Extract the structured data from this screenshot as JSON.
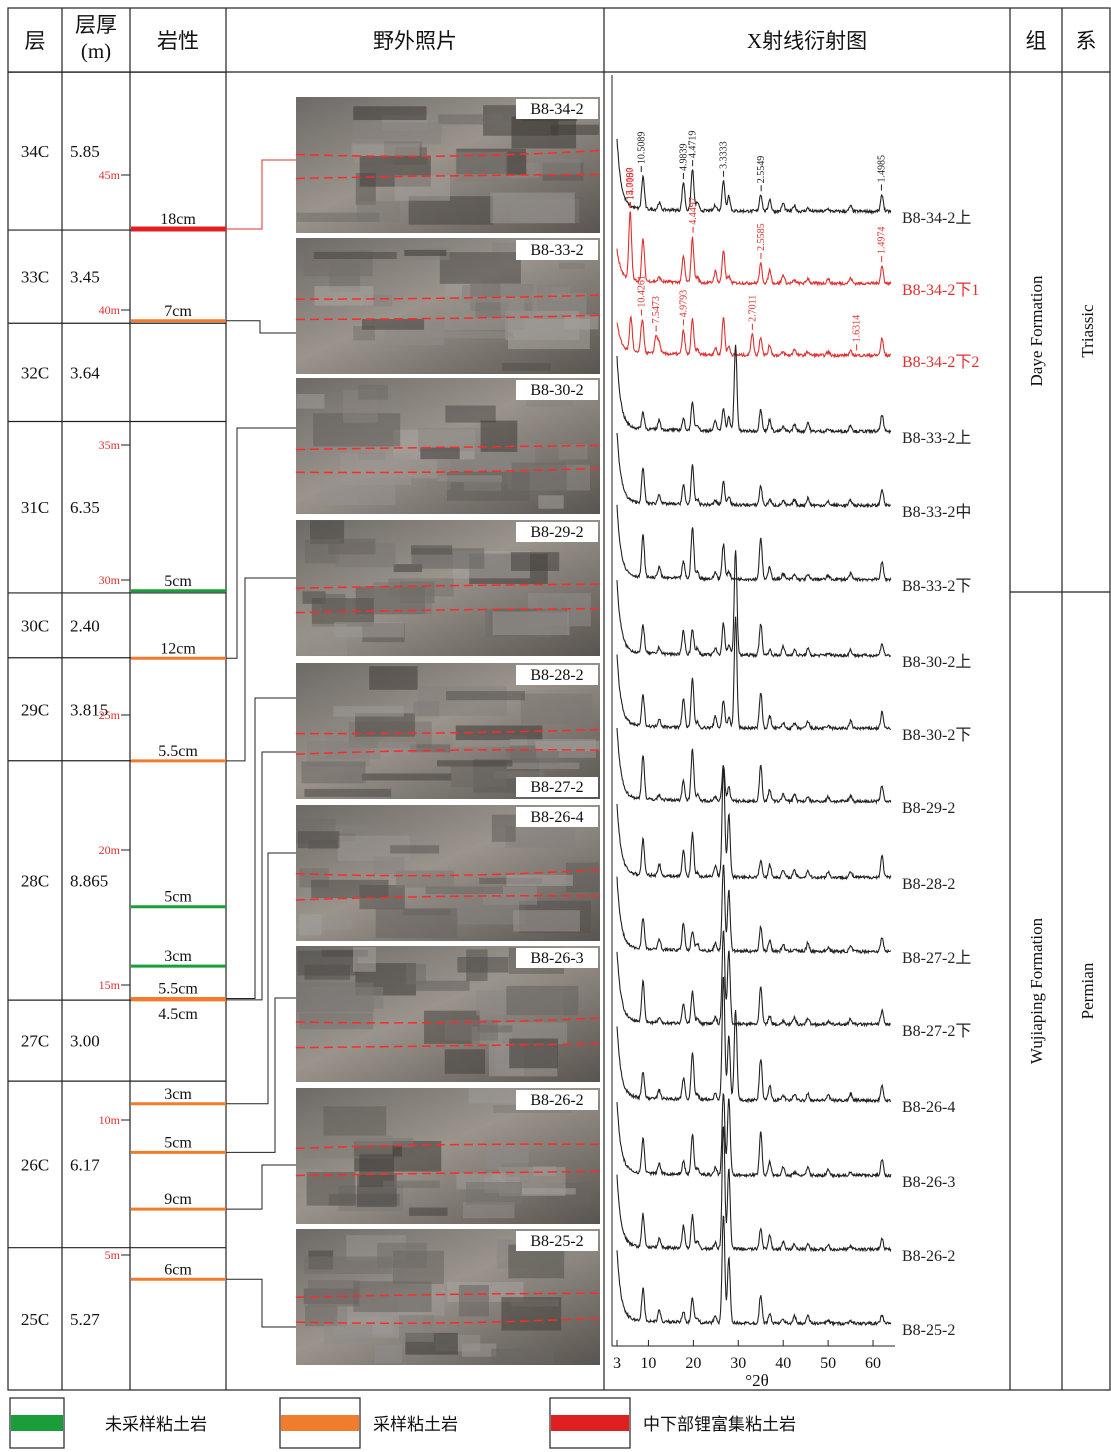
{
  "header": {
    "layer": "层",
    "thickness": [
      "层厚",
      "(m)"
    ],
    "lithology": "岩性",
    "photo": "野外照片",
    "xrd": "X射线衍射图",
    "formation": "组",
    "system": "系"
  },
  "layers": [
    {
      "name": "34C",
      "thickness": 5.85,
      "thickness_label": "5.85"
    },
    {
      "name": "33C",
      "thickness": 3.45,
      "thickness_label": "3.45"
    },
    {
      "name": "32C",
      "thickness": 3.64,
      "thickness_label": "3.64"
    },
    {
      "name": "31C",
      "thickness": 6.35,
      "thickness_label": "6.35"
    },
    {
      "name": "30C",
      "thickness": 2.4,
      "thickness_label": "2.40"
    },
    {
      "name": "29C",
      "thickness": 3.815,
      "thickness_label": "3.815"
    },
    {
      "name": "28C",
      "thickness": 8.865,
      "thickness_label": "8.865"
    },
    {
      "name": "27C",
      "thickness": 3.0,
      "thickness_label": "3.00"
    },
    {
      "name": "26C",
      "thickness": 6.17,
      "thickness_label": "6.17"
    },
    {
      "name": "25C",
      "thickness": 5.27,
      "thickness_label": "5.27"
    }
  ],
  "depth_ticks": [
    {
      "value": 45,
      "label": "45m"
    },
    {
      "value": 40,
      "label": "40m"
    },
    {
      "value": 35,
      "label": "35m"
    },
    {
      "value": 30,
      "label": "30m"
    },
    {
      "value": 25,
      "label": "25m"
    },
    {
      "value": 20,
      "label": "20m"
    },
    {
      "value": 15,
      "label": "15m"
    },
    {
      "value": 10,
      "label": "10m"
    },
    {
      "value": 5,
      "label": "5m"
    }
  ],
  "clay_beds": [
    {
      "label": "18cm",
      "depth": 43.0,
      "kind": 2
    },
    {
      "label": "7cm",
      "depth": 39.6,
      "kind": 1
    },
    {
      "label": "5cm",
      "depth": 29.6,
      "kind": 0
    },
    {
      "label": "12cm",
      "depth": 27.1,
      "kind": 1
    },
    {
      "label": "5.5cm",
      "depth": 23.3,
      "kind": 1
    },
    {
      "label": "5cm",
      "depth": 17.9,
      "kind": 0
    },
    {
      "label": "3cm",
      "depth": 15.7,
      "kind": 0
    },
    {
      "label": "5.5cm",
      "depth": 14.5,
      "kind": 1
    },
    {
      "label": "4.5cm",
      "depth": 14.45,
      "kind": 1
    },
    {
      "label": "3cm",
      "depth": 10.6,
      "kind": 1
    },
    {
      "label": "5cm",
      "depth": 8.8,
      "kind": 1
    },
    {
      "label": "9cm",
      "depth": 6.7,
      "kind": 1
    },
    {
      "label": "6cm",
      "depth": 4.1,
      "kind": 1
    }
  ],
  "photos": [
    {
      "labels": [
        "B8-34-2"
      ]
    },
    {
      "labels": [
        "B8-33-2"
      ]
    },
    {
      "labels": [
        "B8-30-2"
      ]
    },
    {
      "labels": [
        "B8-29-2"
      ]
    },
    {
      "labels": [
        "B8-28-2",
        "B8-27-2"
      ]
    },
    {
      "labels": [
        "B8-26-4"
      ]
    },
    {
      "labels": [
        "B8-26-3"
      ]
    },
    {
      "labels": [
        "B8-26-2"
      ]
    },
    {
      "labels": [
        "B8-25-2"
      ]
    }
  ],
  "xrd": {
    "xlim": [
      1,
      65
    ],
    "xticks": [
      3,
      10,
      20,
      30,
      40,
      50,
      60
    ],
    "xlabel": "°2θ",
    "traces": [
      {
        "label": "B8-34-2上",
        "color": "#222222",
        "peaks": [
          10.5089,
          4.9839,
          4.4719,
          3.3333,
          2.5549,
          1.4985
        ]
      },
      {
        "label": "B8-34-2下1",
        "color": "#e03030",
        "peaks": [
          {
            "value": 15.009,
            "label": "15.0090"
          },
          14.7167,
          4.4497,
          2.5585,
          1.4974
        ]
      },
      {
        "label": "B8-34-2下2",
        "color": "#e03030",
        "peaks": [
          10.4261,
          7.5473,
          4.9793,
          2.7011,
          1.6314
        ]
      },
      {
        "label": "B8-33-2上",
        "color": "#222222"
      },
      {
        "label": "B8-33-2中",
        "color": "#222222"
      },
      {
        "label": "B8-33-2下",
        "color": "#222222"
      },
      {
        "label": "B8-30-2上",
        "color": "#222222"
      },
      {
        "label": "B8-30-2下",
        "color": "#222222"
      },
      {
        "label": "B8-29-2",
        "color": "#222222"
      },
      {
        "label": "B8-28-2",
        "color": "#222222"
      },
      {
        "label": "B8-27-2上",
        "color": "#222222"
      },
      {
        "label": "B8-27-2下",
        "color": "#222222"
      },
      {
        "label": "B8-26-4",
        "color": "#222222"
      },
      {
        "label": "B8-26-3",
        "color": "#222222"
      },
      {
        "label": "B8-26-2",
        "color": "#222222"
      },
      {
        "label": "B8-25-2",
        "color": "#222222"
      }
    ]
  },
  "formations": [
    "Daye Formation",
    "Wujiaping Formation"
  ],
  "systems": [
    "Triassic",
    "Permian"
  ],
  "legend": [
    {
      "label": "未采样粘土岩",
      "color": "#1a9e3a"
    },
    {
      "label": "采样粘土岩",
      "color": "#f07c2c"
    },
    {
      "label": "中下部锂富集粘土岩",
      "color": "#e02020"
    }
  ]
}
